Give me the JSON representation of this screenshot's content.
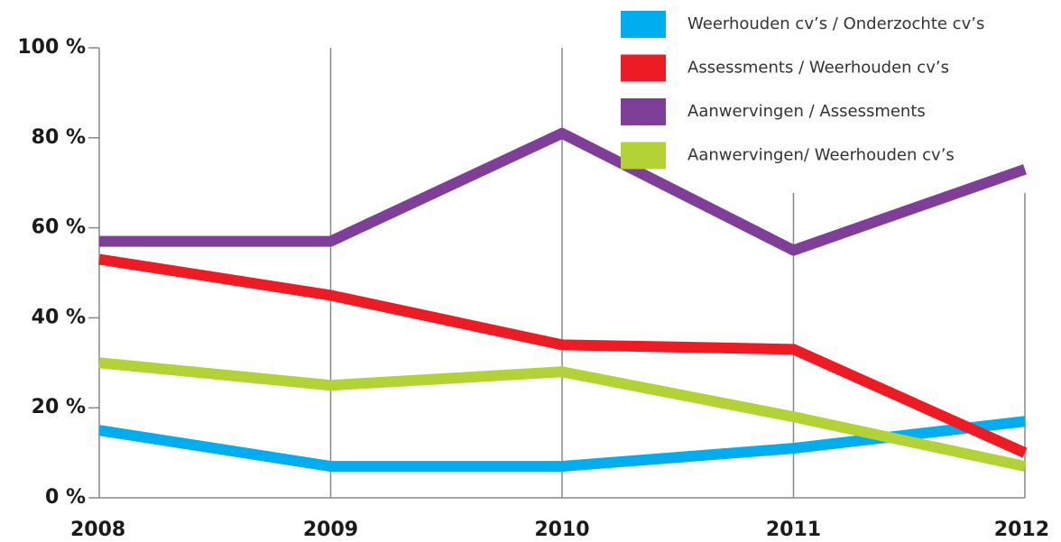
{
  "chart_data": {
    "type": "line",
    "categories": [
      "2008",
      "2009",
      "2010",
      "2011",
      "2012"
    ],
    "series": [
      {
        "name": "Weerhouden cv’s / Onderzochte cv’s",
        "color": "#00aeef",
        "values": [
          15,
          7,
          7,
          11,
          17
        ]
      },
      {
        "name": "Assessments / Weerhouden cv’s",
        "color": "#ed1c24",
        "values": [
          53,
          45,
          34,
          33,
          10
        ]
      },
      {
        "name": "Aanwervingen / Assessments",
        "color": "#7f3f98",
        "values": [
          57,
          57,
          81,
          55,
          73
        ]
      },
      {
        "name": "Aanwervingen/ Weerhouden cv’s",
        "color": "#b2d235",
        "values": [
          30,
          25,
          28,
          18,
          7
        ]
      }
    ],
    "ylim": [
      0,
      100
    ],
    "yticks": [
      {
        "value": 0,
        "label": "0 %"
      },
      {
        "value": 20,
        "label": "20 %"
      },
      {
        "value": 40,
        "label": "40 %"
      },
      {
        "value": 60,
        "label": "60 %"
      },
      {
        "value": 80,
        "label": "80 %"
      },
      {
        "value": 100,
        "label": "100 %"
      }
    ],
    "grid": true,
    "legend": "top-right"
  }
}
